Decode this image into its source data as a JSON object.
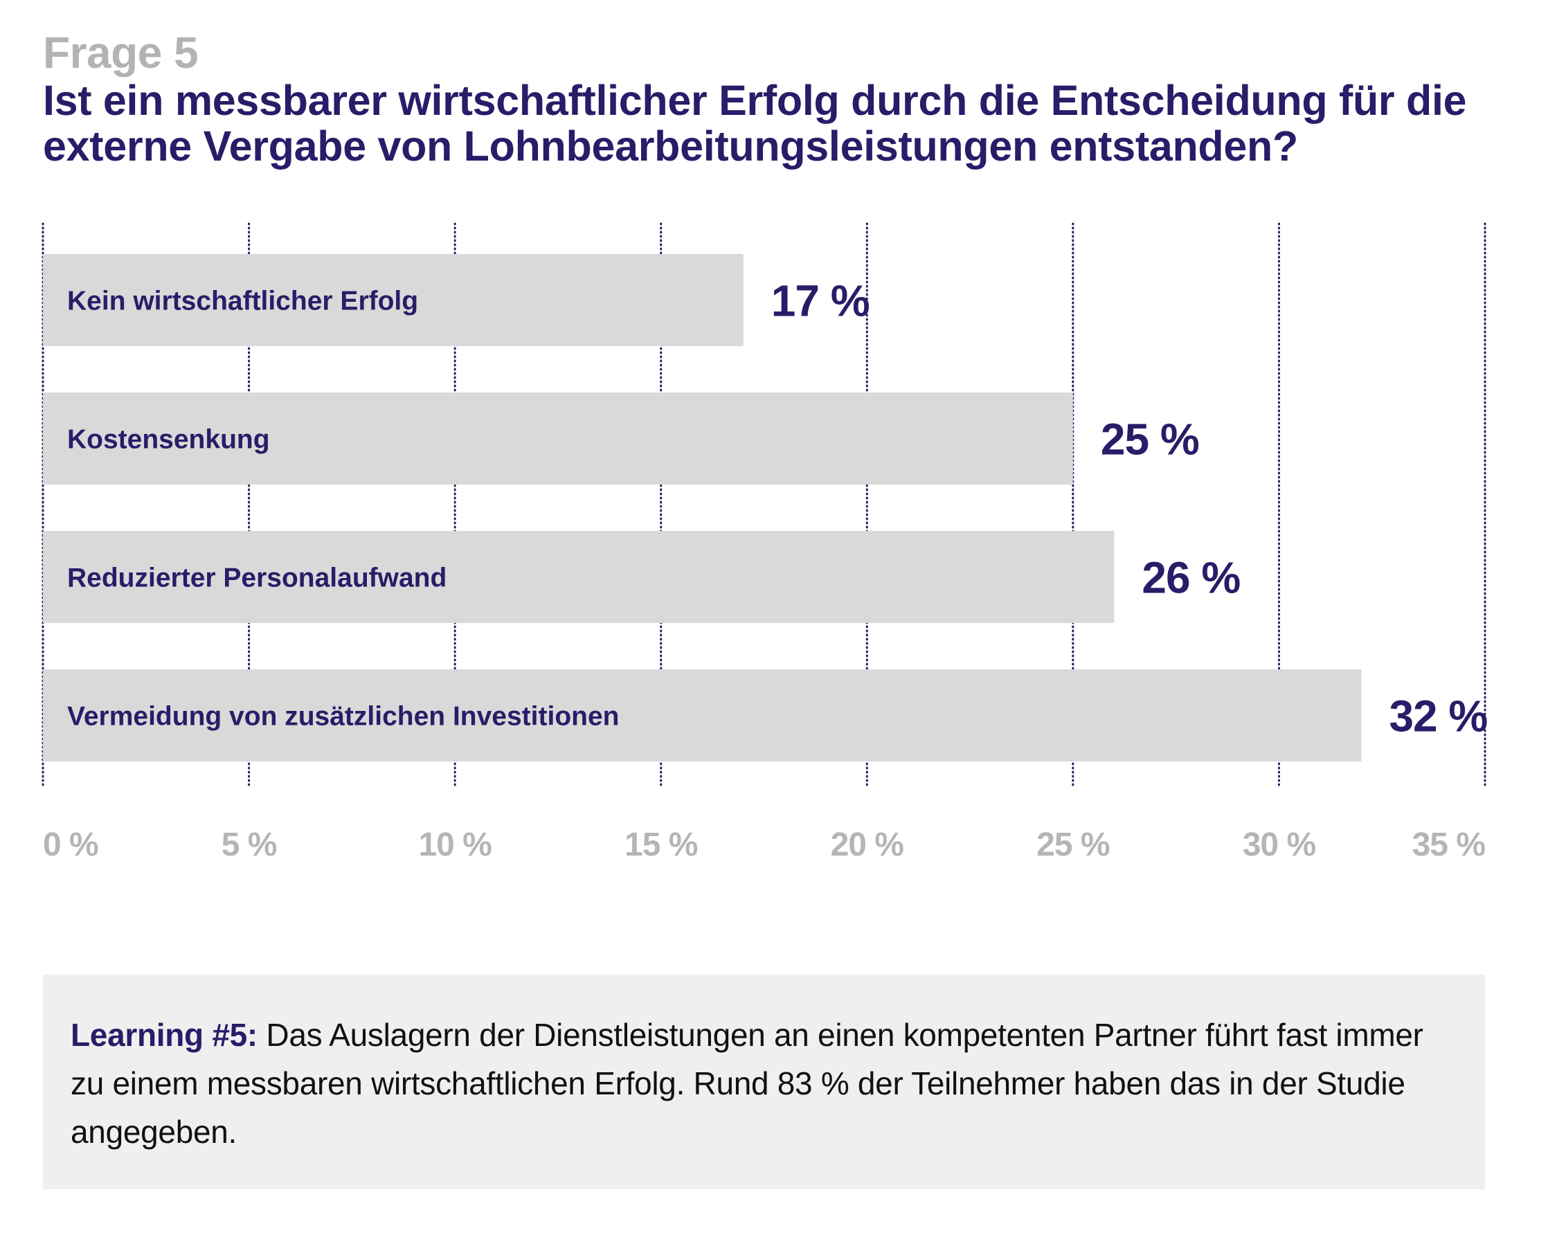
{
  "header": {
    "kicker": "Frage 5",
    "title": "Ist ein messbarer wirtschaftlicher Erfolg durch die Entscheidung für die externe Vergabe von Lohnbearbeitungsleistungen entstanden?"
  },
  "colors": {
    "accent": "#271d68",
    "bar": "#d9d9d9",
    "tick": "#b5b5b5",
    "kicker": "#b3b3b3",
    "learning_bg": "#efefef"
  },
  "chart_data": {
    "type": "bar",
    "orientation": "horizontal",
    "title": "Ist ein messbarer wirtschaftlicher Erfolg durch die Entscheidung für die externe Vergabe von Lohnbearbeitungsleistungen entstanden?",
    "categories": [
      "Kein wirtschaftlicher Erfolg",
      "Kostensenkung",
      "Reduzierter Personalaufwand",
      "Vermeidung von zusätzlichen Investitionen"
    ],
    "values": [
      17,
      25,
      26,
      32
    ],
    "value_labels": [
      "17 %",
      "25 %",
      "26 %",
      "32 %"
    ],
    "unit": "%",
    "xlabel": "",
    "ylabel": "",
    "xlim": [
      0,
      35
    ],
    "ticks": [
      0,
      5,
      10,
      15,
      20,
      25,
      30,
      35
    ],
    "tick_labels": [
      "0 %",
      "5 %",
      "10 %",
      "15 %",
      "20 %",
      "25 %",
      "30 %",
      "35 %"
    ],
    "grid": "vertical dotted",
    "legend": "none"
  },
  "learning": {
    "lead": "Learning #5:",
    "text": " Das Auslagern der Dienstleistungen an einen kompetenten Partner führt fast immer zu einem messbaren wirtschaftlichen Erfolg. Rund 83 % der Teilnehmer haben das in der Studie angegeben."
  }
}
